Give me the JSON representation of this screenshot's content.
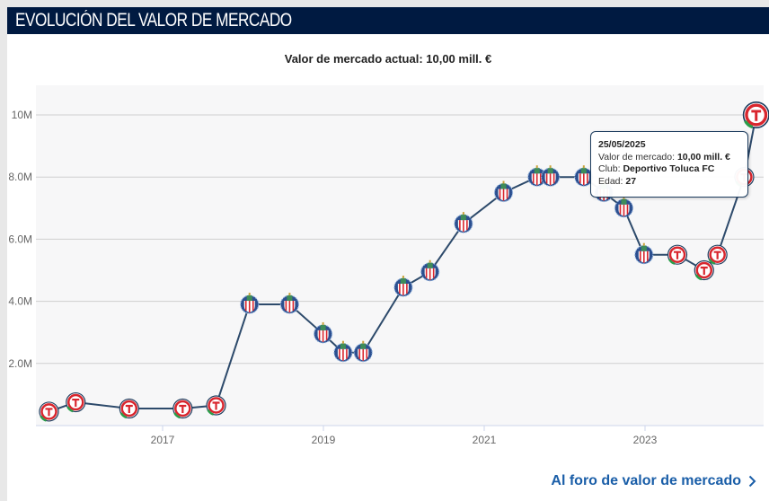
{
  "header": {
    "title": "EVOLUCIÓN DEL VALOR DE MERCADO"
  },
  "chart_data": {
    "type": "line",
    "title": "Valor de mercado actual: 10,00 mill. €",
    "y_ticks": [
      "2.0M",
      "4.0M",
      "6.0M",
      "8.0M",
      "10M"
    ],
    "y_tick_values": [
      2,
      4,
      6,
      8,
      10
    ],
    "x_ticks": [
      "2017",
      "2019",
      "2021",
      "2023"
    ],
    "ylim": [
      0,
      11
    ],
    "y_unit": "mill. €",
    "grid": true,
    "line_color": "#2d4a6b",
    "points": [
      {
        "date": "2016-08",
        "value": 0.45,
        "club": "Deportivo Toluca FC"
      },
      {
        "date": "2016-12",
        "value": 0.75,
        "club": "Deportivo Toluca FC"
      },
      {
        "date": "2017-08",
        "value": 0.55,
        "club": "Deportivo Toluca FC"
      },
      {
        "date": "2018-04",
        "value": 0.55,
        "club": "Deportivo Toluca FC"
      },
      {
        "date": "2018-09",
        "value": 0.65,
        "club": "Deportivo Toluca FC"
      },
      {
        "date": "2019-02",
        "value": 3.9,
        "club": "CD Guadalajara"
      },
      {
        "date": "2019-08",
        "value": 3.9,
        "club": "CD Guadalajara"
      },
      {
        "date": "2020-01",
        "value": 2.95,
        "club": "CD Guadalajara"
      },
      {
        "date": "2020-04",
        "value": 2.35,
        "club": "CD Guadalajara"
      },
      {
        "date": "2020-07",
        "value": 2.35,
        "club": "CD Guadalajara"
      },
      {
        "date": "2021-01",
        "value": 4.45,
        "club": "CD Guadalajara"
      },
      {
        "date": "2021-05",
        "value": 4.95,
        "club": "CD Guadalajara"
      },
      {
        "date": "2021-10",
        "value": 6.5,
        "club": "CD Guadalajara"
      },
      {
        "date": "2022-04",
        "value": 7.5,
        "club": "CD Guadalajara"
      },
      {
        "date": "2022-09",
        "value": 8.0,
        "club": "CD Guadalajara"
      },
      {
        "date": "2022-11",
        "value": 8.0,
        "club": "CD Guadalajara"
      },
      {
        "date": "2023-04",
        "value": 8.0,
        "club": "CD Guadalajara"
      },
      {
        "date": "2023-07",
        "value": 7.5,
        "club": "CD Guadalajara"
      },
      {
        "date": "2023-10",
        "value": 7.0,
        "club": "CD Guadalajara"
      },
      {
        "date": "2024-01",
        "value": 5.5,
        "club": "CD Guadalajara"
      },
      {
        "date": "2024-06",
        "value": 5.5,
        "club": "Deportivo Toluca FC"
      },
      {
        "date": "2024-10",
        "value": 5.0,
        "club": "Deportivo Toluca FC"
      },
      {
        "date": "2024-12",
        "value": 5.5,
        "club": "Deportivo Toluca FC"
      },
      {
        "date": "2025-04",
        "value": 8.0,
        "club": "Deportivo Toluca FC"
      },
      {
        "date": "2025-05-25",
        "value": 10.0,
        "club": "Deportivo Toluca FC"
      }
    ]
  },
  "tooltip": {
    "date": "25/05/2025",
    "value_label": "Valor de mercado: ",
    "value": "10,00 mill. €",
    "club_label": "Club: ",
    "club": "Deportivo Toluca FC",
    "age_label": "Edad: ",
    "age": "27"
  },
  "footer": {
    "link_label": "Al foro de valor de mercado",
    "chevron": "chevron-right-icon"
  }
}
